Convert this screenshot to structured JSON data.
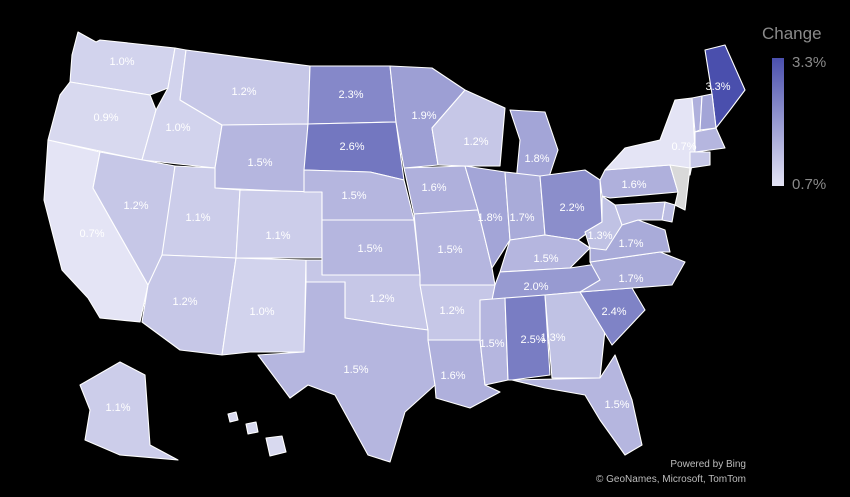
{
  "legend": {
    "title": "Change",
    "max_label": "3.3%",
    "min_label": "0.7%",
    "min_color": "#e4e4f5",
    "max_color": "#4a4fad"
  },
  "credits": {
    "line1": "Powered by Bing",
    "line2": "© GeoNames, Microsoft, TomTom"
  },
  "states": [
    {
      "id": "WA",
      "label": "1.0%",
      "value": 1.0
    },
    {
      "id": "OR",
      "label": "0.9%",
      "value": 0.9
    },
    {
      "id": "CA",
      "label": "0.7%",
      "value": 0.7
    },
    {
      "id": "ID",
      "label": "1.0%",
      "value": 1.0
    },
    {
      "id": "NV",
      "label": "1.2%",
      "value": 1.2
    },
    {
      "id": "MT",
      "label": "1.2%",
      "value": 1.2
    },
    {
      "id": "WY",
      "label": "1.5%",
      "value": 1.5
    },
    {
      "id": "UT",
      "label": "1.1%",
      "value": 1.1
    },
    {
      "id": "AZ",
      "label": "1.2%",
      "value": 1.2
    },
    {
      "id": "CO",
      "label": "1.1%",
      "value": 1.1
    },
    {
      "id": "NM",
      "label": "1.0%",
      "value": 1.0
    },
    {
      "id": "ND",
      "label": "2.3%",
      "value": 2.3
    },
    {
      "id": "SD",
      "label": "2.6%",
      "value": 2.6
    },
    {
      "id": "NE",
      "label": "1.5%",
      "value": 1.5
    },
    {
      "id": "KS",
      "label": "1.5%",
      "value": 1.5
    },
    {
      "id": "OK",
      "label": "1.2%",
      "value": 1.2
    },
    {
      "id": "TX",
      "label": "1.5%",
      "value": 1.5
    },
    {
      "id": "MN",
      "label": "1.9%",
      "value": 1.9
    },
    {
      "id": "IA",
      "label": "1.6%",
      "value": 1.6
    },
    {
      "id": "MO",
      "label": "1.5%",
      "value": 1.5
    },
    {
      "id": "AR",
      "label": "1.2%",
      "value": 1.2
    },
    {
      "id": "LA",
      "label": "1.6%",
      "value": 1.6
    },
    {
      "id": "WI",
      "label": "1.2%",
      "value": 1.2
    },
    {
      "id": "IL",
      "label": "1.8%",
      "value": 1.8
    },
    {
      "id": "MI",
      "label": "1.8%",
      "value": 1.8
    },
    {
      "id": "IN",
      "label": "1.7%",
      "value": 1.7
    },
    {
      "id": "OH",
      "label": "2.2%",
      "value": 2.2
    },
    {
      "id": "KY",
      "label": "1.5%",
      "value": 1.5
    },
    {
      "id": "TN",
      "label": "2.0%",
      "value": 2.0
    },
    {
      "id": "MS",
      "label": "1.5%",
      "value": 1.5
    },
    {
      "id": "AL",
      "label": "2.5%",
      "value": 2.5
    },
    {
      "id": "GA",
      "label": "1.3%",
      "value": 1.3
    },
    {
      "id": "FL",
      "label": "1.5%",
      "value": 1.5
    },
    {
      "id": "SC",
      "label": "2.4%",
      "value": 2.4
    },
    {
      "id": "NC",
      "label": "1.7%",
      "value": 1.7
    },
    {
      "id": "VA",
      "label": "1.7%",
      "value": 1.7
    },
    {
      "id": "WV",
      "label": "1.3%",
      "value": 1.3
    },
    {
      "id": "PA",
      "label": "1.6%",
      "value": 1.6
    },
    {
      "id": "NY",
      "label": "0.7%",
      "value": 0.7
    },
    {
      "id": "ME",
      "label": "3.3%",
      "value": 3.3
    },
    {
      "id": "AK",
      "label": "1.1%",
      "value": 1.1
    },
    {
      "id": "VT",
      "label": "",
      "value": 1.6
    },
    {
      "id": "NH",
      "label": "",
      "value": 1.8
    },
    {
      "id": "MA",
      "label": "",
      "value": 1.5
    },
    {
      "id": "CT",
      "label": "",
      "value": 1.2
    },
    {
      "id": "NJ",
      "label": "",
      "value": null
    },
    {
      "id": "DE",
      "label": "",
      "value": 1.4
    },
    {
      "id": "MD",
      "label": "",
      "value": 1.4
    },
    {
      "id": "HI",
      "label": "",
      "value": 0.9
    }
  ]
}
